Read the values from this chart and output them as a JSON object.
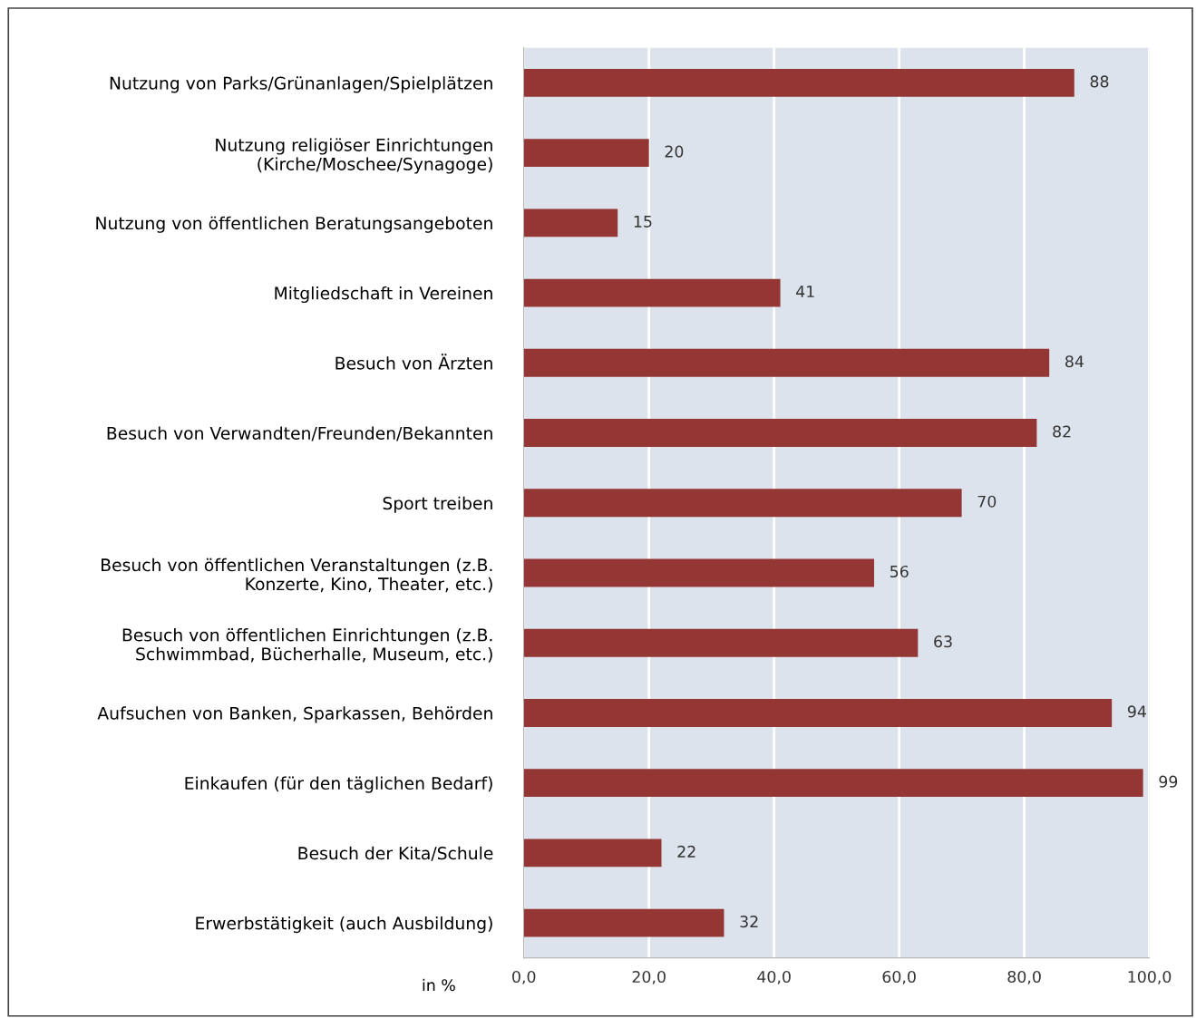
{
  "chart_data": {
    "type": "bar",
    "orientation": "horizontal",
    "xlabel": "in %",
    "categories": [
      "Nutzung von Parks/Grünanlagen/Spielplätzen",
      "Nutzung religiöser Einrichtungen\n(Kirche/Moschee/Synagoge)",
      "Nutzung von öffentlichen Beratungsangeboten",
      "Mitgliedschaft in Vereinen",
      "Besuch von Ärzten",
      "Besuch von Verwandten/Freunden/Bekannten",
      "Sport treiben",
      "Besuch von öffentlichen Veranstaltungen (z.B.\nKonzerte, Kino, Theater, etc.)",
      "Besuch von öffentlichen Einrichtungen (z.B.\nSchwimmbad, Bücherhalle, Museum, etc.)",
      "Aufsuchen von Banken, Sparkassen, Behörden",
      "Einkaufen (für den täglichen Bedarf)",
      "Besuch der Kita/Schule",
      "Erwerbstätigkeit (auch Ausbildung)"
    ],
    "values": [
      88,
      20,
      15,
      41,
      84,
      82,
      70,
      56,
      63,
      94,
      99,
      22,
      32
    ],
    "color": "#943634",
    "xlim": [
      0,
      100
    ],
    "xticks": [
      {
        "value": 0,
        "label": "0,0"
      },
      {
        "value": 20,
        "label": "20,0"
      },
      {
        "value": 40,
        "label": "40,0"
      },
      {
        "value": 60,
        "label": "60,0"
      },
      {
        "value": 80,
        "label": "80,0"
      },
      {
        "value": 100,
        "label": "100,0"
      }
    ],
    "grid": "x",
    "data_labels": true,
    "legend": false
  }
}
